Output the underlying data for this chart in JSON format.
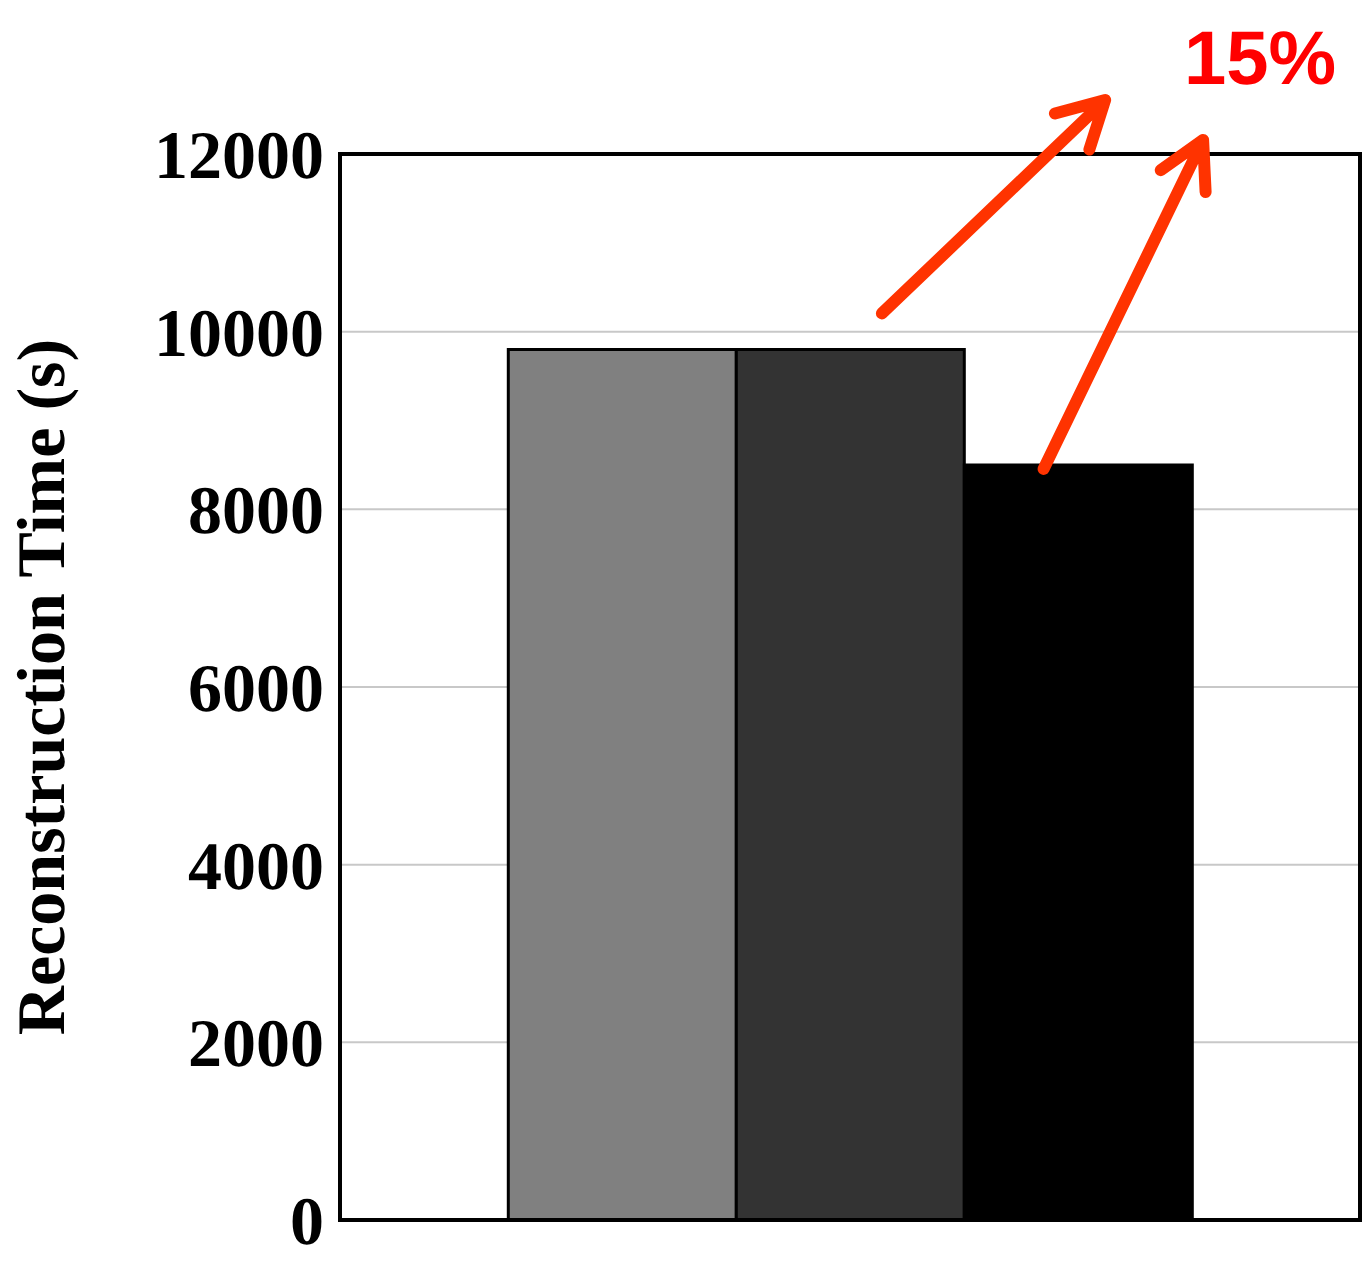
{
  "chart_data": {
    "type": "bar",
    "ylabel": "Reconstruction Time (s)",
    "categories": [
      null
    ],
    "series": [
      {
        "color": "#808080",
        "values": [
          9800
        ]
      },
      {
        "color": "#333333",
        "values": [
          9800
        ]
      },
      {
        "color": "#000000",
        "values": [
          8500
        ]
      }
    ],
    "ylim": [
      0,
      12000
    ],
    "yticks": [
      0,
      2000,
      4000,
      6000,
      8000,
      10000,
      12000
    ],
    "grid": "y",
    "annotations": [
      "15%"
    ]
  }
}
